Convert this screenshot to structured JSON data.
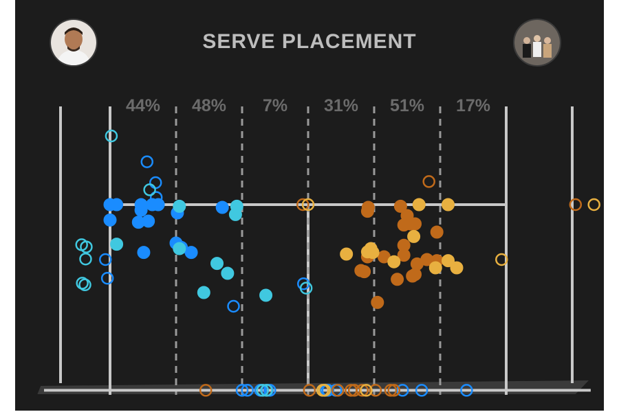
{
  "title": "SERVE PLACEMENT",
  "avatars": {
    "left": {
      "icon": "player-photo-icon"
    },
    "right": {
      "icon": "team-photo-icon"
    }
  },
  "colors": {
    "background": "#1c1c1c",
    "line": "#c8c8c8",
    "player_blue": "#1a8cff",
    "player_cyan": "#40c8e0",
    "opponent_orange": "#c06a1a",
    "opponent_gold": "#e8b040"
  },
  "chart_data": {
    "type": "scatter",
    "title": "SERVE PLACEMENT",
    "zone_percentages": [
      {
        "zone": 1,
        "label": "44%"
      },
      {
        "zone": 2,
        "label": "48%"
      },
      {
        "zone": 3,
        "label": "7%"
      },
      {
        "zone": 4,
        "label": "31%"
      },
      {
        "zone": 5,
        "label": "51%"
      },
      {
        "zone": 6,
        "label": "17%"
      }
    ],
    "x_range": [
      -1,
      7.3
    ],
    "y_range": [
      -2.4,
      2.6
    ],
    "legend": "none",
    "series": [
      {
        "color": "#1a8cff",
        "filled": [
          [
            0,
            1.3
          ],
          [
            0.1,
            1.3
          ],
          [
            0,
            1.02
          ],
          [
            0.47,
            1.3
          ],
          [
            0.47,
            1.2
          ],
          [
            0.64,
            1.3
          ],
          [
            0.73,
            1.3
          ],
          [
            0.58,
            1.0
          ],
          [
            0.43,
            0.98
          ],
          [
            1.02,
            1.15
          ],
          [
            1.0,
            0.6
          ],
          [
            1.08,
            0.52
          ],
          [
            0.51,
            0.43
          ],
          [
            1.23,
            0.43
          ],
          [
            1.7,
            1.25
          ]
        ],
        "hollow": [
          [
            -0.07,
            0.3
          ],
          [
            -0.04,
            -0.04
          ],
          [
            0.56,
            2.08
          ],
          [
            0.69,
            1.7
          ],
          [
            0.7,
            1.43
          ],
          [
            2.93,
            -0.14
          ],
          [
            1.87,
            -0.55
          ],
          [
            2.0,
            -2.08
          ],
          [
            2.08,
            -2.08
          ],
          [
            2.28,
            -2.08
          ],
          [
            2.38,
            -2.08
          ],
          [
            2.42,
            -2.08
          ],
          [
            3.27,
            -2.08
          ],
          [
            3.3,
            -2.08
          ],
          [
            3.42,
            -2.08
          ],
          [
            4.43,
            -2.08
          ],
          [
            4.72,
            -2.08
          ],
          [
            5.4,
            -2.08
          ]
        ]
      },
      {
        "color": "#40c8e0",
        "filled": [
          [
            0.1,
            0.58
          ],
          [
            1.05,
            1.27
          ],
          [
            1.9,
            1.12
          ],
          [
            1.92,
            1.27
          ],
          [
            1.05,
            0.5
          ],
          [
            1.62,
            0.23
          ],
          [
            1.78,
            0.05
          ],
          [
            1.42,
            -0.3
          ],
          [
            2.36,
            -0.35
          ]
        ],
        "hollow": [
          [
            0.02,
            2.55
          ],
          [
            -0.43,
            0.57
          ],
          [
            -0.36,
            0.53
          ],
          [
            -0.37,
            0.31
          ],
          [
            -0.42,
            -0.13
          ],
          [
            -0.38,
            -0.16
          ],
          [
            0.6,
            1.57
          ],
          [
            1.92,
            1.27
          ],
          [
            2.97,
            -0.22
          ],
          [
            2.31,
            -2.08
          ],
          [
            2.37,
            -2.08
          ],
          [
            3.25,
            -2.08
          ]
        ]
      },
      {
        "color": "#c06a1a",
        "filled": [
          [
            3.91,
            1.25
          ],
          [
            3.9,
            1.18
          ],
          [
            4.4,
            1.27
          ],
          [
            4.5,
            1.1
          ],
          [
            4.55,
            0.95
          ],
          [
            4.45,
            0.93
          ],
          [
            4.62,
            0.95
          ],
          [
            4.95,
            0.8
          ],
          [
            4.45,
            0.56
          ],
          [
            3.92,
            0.43
          ],
          [
            3.9,
            0.35
          ],
          [
            4.15,
            0.35
          ],
          [
            4.45,
            0.38
          ],
          [
            4.8,
            0.3
          ],
          [
            4.65,
            0.22
          ],
          [
            4.95,
            0.28
          ],
          [
            3.8,
            0.1
          ],
          [
            3.85,
            0.08
          ],
          [
            4.62,
            0.03
          ],
          [
            4.58,
            0.0
          ],
          [
            4.35,
            -0.06
          ],
          [
            4.05,
            -0.48
          ]
        ],
        "hollow": [
          [
            2.92,
            1.3
          ],
          [
            4.83,
            1.72
          ],
          [
            7.05,
            1.3
          ],
          [
            1.45,
            -2.08
          ],
          [
            3.02,
            -2.08
          ],
          [
            3.45,
            -2.08
          ],
          [
            3.65,
            -2.08
          ],
          [
            3.7,
            -2.08
          ],
          [
            3.82,
            -2.08
          ],
          [
            4.02,
            -2.08
          ],
          [
            4.25,
            -2.08
          ],
          [
            4.3,
            -2.08
          ]
        ]
      },
      {
        "color": "#e8b040",
        "filled": [
          [
            4.68,
            1.3
          ],
          [
            5.12,
            1.3
          ],
          [
            3.95,
            0.5
          ],
          [
            4.6,
            0.72
          ],
          [
            3.58,
            0.4
          ],
          [
            3.98,
            0.43
          ],
          [
            4.3,
            0.26
          ],
          [
            5.12,
            0.28
          ],
          [
            4.93,
            0.15
          ],
          [
            5.25,
            0.15
          ],
          [
            3.9,
            0.44
          ]
        ],
        "hollow": [
          [
            3.0,
            1.3
          ],
          [
            5.93,
            0.3
          ],
          [
            7.33,
            1.3
          ],
          [
            3.22,
            -2.08
          ],
          [
            3.25,
            -2.08
          ],
          [
            3.88,
            -2.08
          ]
        ]
      }
    ]
  }
}
